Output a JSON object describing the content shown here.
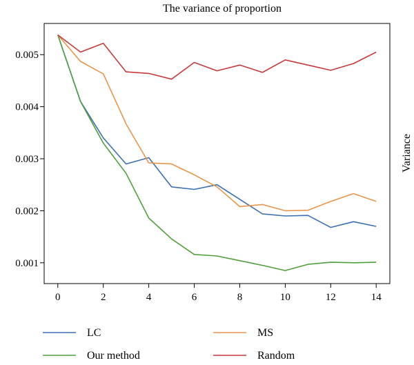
{
  "chart_data": {
    "type": "line",
    "title": "The variance of proportion",
    "xlabel": "",
    "ylabel": "Variance",
    "xlim": [
      -0.6,
      14.6
    ],
    "ylim": [
      0.0006,
      0.0056
    ],
    "x": [
      0,
      1,
      2,
      3,
      4,
      5,
      6,
      7,
      8,
      9,
      10,
      11,
      12,
      13,
      14
    ],
    "xticks": [
      0,
      2,
      4,
      6,
      8,
      10,
      12,
      14
    ],
    "xtick_labels": [
      "0",
      "2",
      "4",
      "6",
      "8",
      "10",
      "12",
      "14"
    ],
    "yticks": [
      0.001,
      0.002,
      0.003,
      0.004,
      0.005
    ],
    "ytick_labels": [
      "0.001",
      "0.002",
      "0.003",
      "0.004",
      "0.005"
    ],
    "grid": false,
    "legend_position": "bottom",
    "series": [
      {
        "name": "LC",
        "color": "#3a6fb0",
        "values": [
          0.00538,
          0.0041,
          0.0034,
          0.0029,
          0.00302,
          0.00246,
          0.00241,
          0.0025,
          0.00222,
          0.00194,
          0.0019,
          0.00191,
          0.00168,
          0.00179,
          0.0017
        ]
      },
      {
        "name": "Our method",
        "color": "#4f9e3c",
        "values": [
          0.00538,
          0.0041,
          0.0033,
          0.00272,
          0.00186,
          0.00146,
          0.00116,
          0.00113,
          0.00104,
          0.00095,
          0.00085,
          0.00097,
          0.00101,
          0.001,
          0.00101
        ]
      },
      {
        "name": "MS",
        "color": "#e8954a",
        "values": [
          0.00538,
          0.00487,
          0.00463,
          0.00367,
          0.00292,
          0.0029,
          0.00269,
          0.00246,
          0.00208,
          0.00212,
          0.002,
          0.00201,
          0.00218,
          0.00233,
          0.00218
        ]
      },
      {
        "name": "Random",
        "color": "#c5393a",
        "values": [
          0.00538,
          0.00505,
          0.00522,
          0.00467,
          0.00464,
          0.00453,
          0.00485,
          0.00469,
          0.0048,
          0.00466,
          0.0049,
          0.0048,
          0.0047,
          0.00483,
          0.00505
        ]
      }
    ]
  }
}
